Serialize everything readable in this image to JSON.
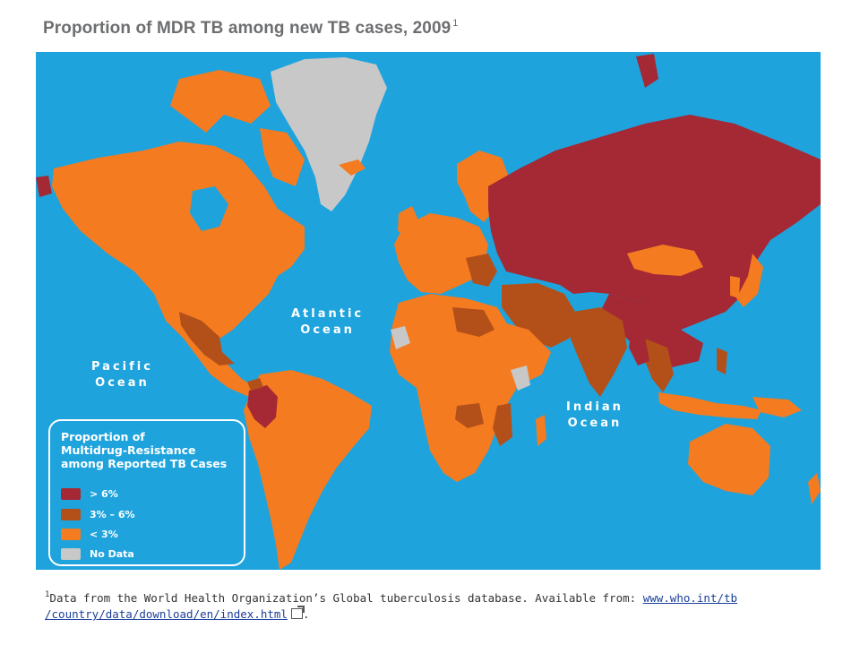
{
  "title": "Proportion of MDR TB among new TB cases, 2009",
  "title_sup": "1",
  "oceans": {
    "atlantic": [
      "Atlantic",
      "Ocean"
    ],
    "pacific": [
      "Pacific",
      "Ocean"
    ],
    "indian": [
      "Indian",
      "Ocean"
    ]
  },
  "legend": {
    "title_lines": [
      "Proportion of",
      "Multidrug-Resistance",
      "among Reported TB Cases"
    ],
    "items": [
      {
        "label": "> 6%",
        "color": "#a42934"
      },
      {
        "label": "3% – 6%",
        "color": "#b3501a"
      },
      {
        "label": "< 3%",
        "color": "#f47b20"
      },
      {
        "label": "No Data",
        "color": "#c8c8c8"
      }
    ]
  },
  "colors": {
    "ocean": "#1ea3dd",
    "high": "#a42934",
    "medium": "#b3501a",
    "low": "#f47b20",
    "nodata": "#c8c8c8"
  },
  "footnote": {
    "sup": "1",
    "text": "Data from the World Health Organization’s Global tuberculosis database. Available from: ",
    "link_part1": "www.who.int/tb",
    "link_part2": "/country/data/download/en/index.html",
    "trailing": "."
  }
}
